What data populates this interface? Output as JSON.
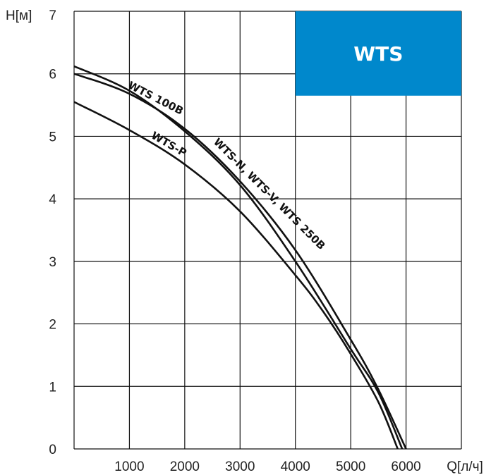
{
  "chart_data": {
    "type": "line",
    "title": "",
    "xlabel": "Q[л/ч]",
    "ylabel": "H[м]",
    "xlim": [
      0,
      7000
    ],
    "ylim": [
      0,
      7
    ],
    "x_ticks": [
      1000,
      2000,
      3000,
      4000,
      5000,
      6000
    ],
    "y_ticks": [
      0,
      1,
      2,
      3,
      4,
      5,
      6,
      7
    ],
    "grid": true,
    "badge": {
      "text": "WTS",
      "color": "#0088cc"
    },
    "line_color": "#111111",
    "series": [
      {
        "name": "WTS 100B",
        "x": [
          0,
          1000,
          2000,
          3000,
          4000,
          5000,
          5500,
          5930
        ],
        "y": [
          6.12,
          5.73,
          5.08,
          4.22,
          3.0,
          1.6,
          0.9,
          0
        ]
      },
      {
        "name": "WTS-N, WTS-V, WTS 250B",
        "x": [
          0,
          1000,
          2000,
          3000,
          4000,
          5000,
          5500,
          6000
        ],
        "y": [
          6.0,
          5.68,
          5.12,
          4.28,
          3.18,
          1.75,
          0.95,
          0
        ]
      },
      {
        "name": "WTS-P",
        "x": [
          0,
          1000,
          2000,
          3000,
          4000,
          4500,
          5000,
          5500,
          5850
        ],
        "y": [
          5.55,
          5.1,
          4.55,
          3.8,
          2.78,
          2.2,
          1.52,
          0.75,
          0
        ]
      }
    ]
  }
}
